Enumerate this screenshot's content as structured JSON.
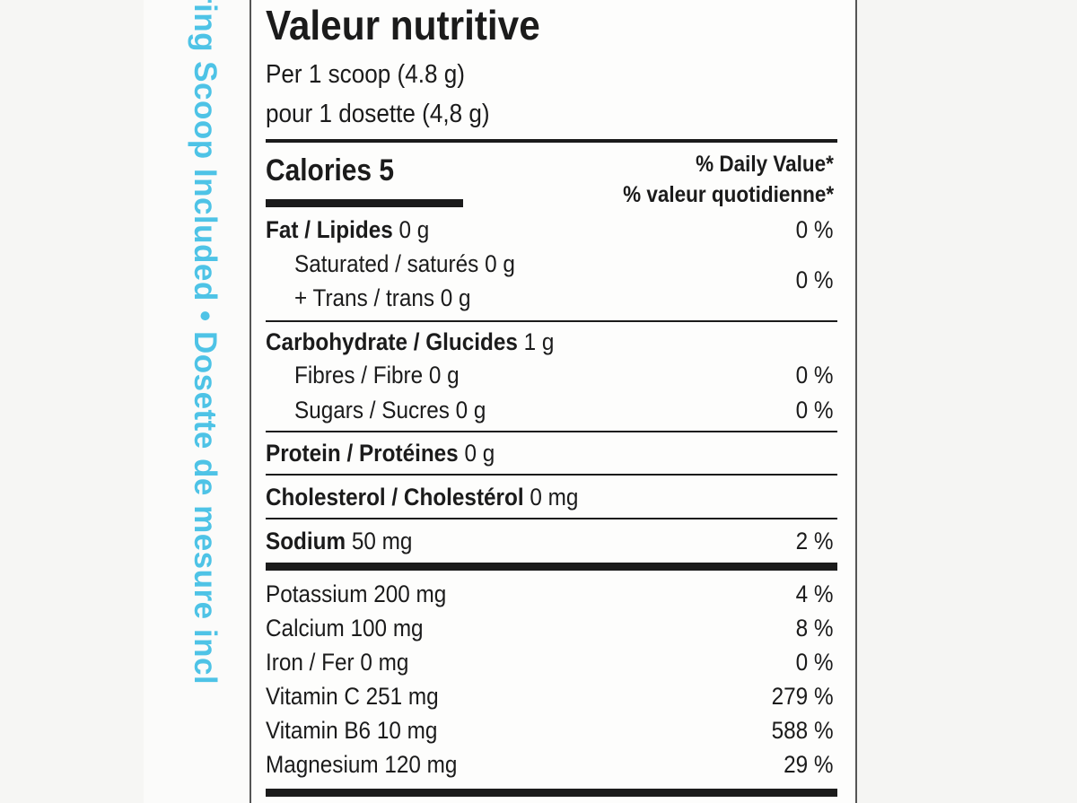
{
  "side": {
    "strip_text": "suring Scoop Included • Dosette de mesure incl",
    "text_color": "#4ec3e6"
  },
  "label": {
    "title": "Valeur nutritive",
    "serving_en": "Per 1 scoop (4.8 g)",
    "serving_fr": "pour 1 dosette (4,8 g)",
    "calories": "Calories 5",
    "dv_en": "% Daily Value*",
    "dv_fr": "% valeur quotidienne*",
    "fat": {
      "name": "Fat / Lipides",
      "amount": " 0 g",
      "dv": "0 %"
    },
    "saturated": "Saturated / saturés 0 g",
    "trans": "+ Trans / trans 0 g",
    "sat_trans_dv": "0 %",
    "carb": {
      "name": "Carbohydrate / Glucides",
      "amount": " 1 g"
    },
    "fibre": {
      "text": "Fibres / Fibre 0 g",
      "dv": "0 %"
    },
    "sugars": {
      "text": "Sugars / Sucres 0 g",
      "dv": "0 %"
    },
    "protein": {
      "name": "Protein / Protéines",
      "amount": " 0 g"
    },
    "cholesterol": {
      "name": "Cholesterol / Cholestérol",
      "amount": " 0 mg"
    },
    "sodium": {
      "name": "Sodium",
      "amount": " 50 mg",
      "dv": "2 %"
    },
    "minerals": [
      {
        "text": "Potassium 200 mg",
        "dv": "4 %"
      },
      {
        "text": "Calcium 100 mg",
        "dv": "8 %"
      },
      {
        "text": "Iron / Fer 0 mg",
        "dv": "0 %"
      },
      {
        "text": "Vitamin C 251 mg",
        "dv": "279 %"
      },
      {
        "text": "Vitamin B6 10 mg",
        "dv": "588 %"
      },
      {
        "text": "Magnesium 120 mg",
        "dv": "29 %"
      }
    ]
  }
}
